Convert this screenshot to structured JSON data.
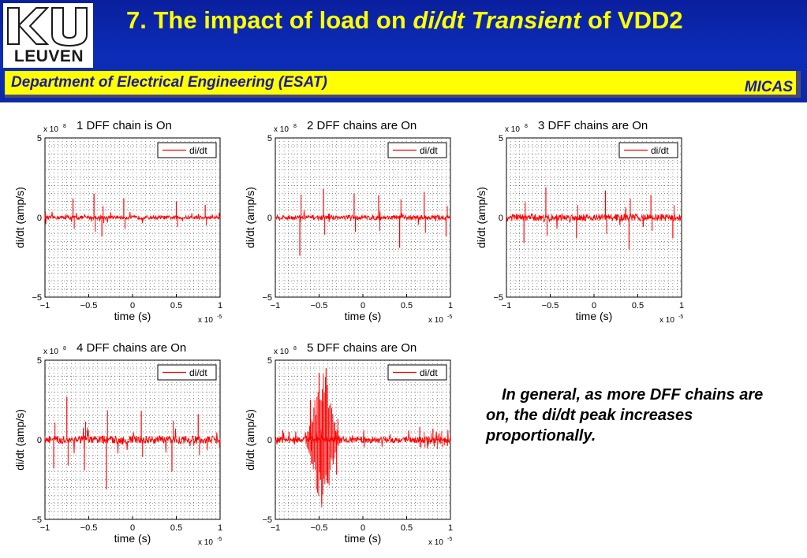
{
  "header": {
    "title_prefix": "7. The impact of load on ",
    "title_italic": "di/dt Transient",
    "title_suffix": " of VDD2",
    "logo_text": "LEUVEN",
    "department": "Department of Electrical Engineering (ESAT)",
    "group": "MICAS",
    "colors": {
      "background": "#0c2db8",
      "title": "#ffff00",
      "band": "#ffff00",
      "band_text": "#1a1aa0"
    }
  },
  "note": "In general, as more DFF chains are on, the di/dt peak increases proportionally.",
  "chart_data": [
    {
      "type": "line",
      "title": "1 DFF chain is On",
      "xlabel": "time (s)",
      "ylabel": "di/dt (amp/s)",
      "x_exponent": "x 10",
      "x_exp_power": "-5",
      "y_exponent": "x 10",
      "y_exp_power": "8",
      "xlim": [
        -1,
        1
      ],
      "ylim": [
        -5,
        5
      ],
      "xticks": [
        "-1",
        "-0.5",
        "0",
        "0.5",
        "1"
      ],
      "yticks": [
        "5",
        "0",
        "-5"
      ],
      "grid": true,
      "legend": "top-right",
      "series": [
        {
          "name": "di/dt",
          "color": "#ff0000",
          "x": [
            -0.68,
            -0.44,
            -0.35,
            -0.1,
            0.5,
            0.83
          ],
          "y": [
            1.2,
            1.5,
            -1.2,
            1.2,
            1.0,
            0.8
          ],
          "noise": 0.12
        }
      ]
    },
    {
      "type": "line",
      "title": "2 DFF chains are On",
      "xlabel": "time (s)",
      "ylabel": "di/dt (amp/s)",
      "x_exponent": "x 10",
      "x_exp_power": "-5",
      "y_exponent": "x 10",
      "y_exp_power": "8",
      "xlim": [
        -1,
        1
      ],
      "ylim": [
        -5,
        5
      ],
      "xticks": [
        "-1",
        "-0.5",
        "0",
        "0.5",
        "1"
      ],
      "yticks": [
        "5",
        "0",
        "-5"
      ],
      "grid": true,
      "legend": "top-right",
      "series": [
        {
          "name": "di/dt",
          "color": "#ff0000",
          "x": [
            -0.72,
            -0.45,
            -0.1,
            0.18,
            0.42,
            0.7,
            0.95
          ],
          "y": [
            -2.4,
            1.8,
            1.5,
            1.4,
            -1.9,
            1.6,
            -1.2
          ],
          "noise": 0.15
        }
      ]
    },
    {
      "type": "line",
      "title": "3 DFF chains are On",
      "xlabel": "time (s)",
      "ylabel": "di/dt (amp/s)",
      "x_exponent": "x 10",
      "x_exp_power": "-5",
      "y_exponent": "x 10",
      "y_exp_power": "8",
      "xlim": [
        -1,
        1
      ],
      "ylim": [
        -5,
        5
      ],
      "xticks": [
        "-1",
        "-0.5",
        "0",
        "0.5",
        "1"
      ],
      "yticks": [
        "5",
        "0",
        "-5"
      ],
      "grid": true,
      "legend": "top-right",
      "series": [
        {
          "name": "di/dt",
          "color": "#ff0000",
          "x": [
            -0.8,
            -0.55,
            -0.2,
            0.13,
            0.4,
            0.65,
            0.9
          ],
          "y": [
            -1.6,
            1.9,
            -1.3,
            1.7,
            -2.0,
            1.4,
            -1.3
          ],
          "noise": 0.22
        }
      ]
    },
    {
      "type": "line",
      "title": "4 DFF chains are On",
      "xlabel": "time (s)",
      "ylabel": "di/dt (amp/s)",
      "x_exponent": "x 10",
      "x_exp_power": "-5",
      "y_exponent": "x 10",
      "y_exp_power": "8",
      "xlim": [
        -1,
        1
      ],
      "ylim": [
        -5,
        5
      ],
      "xticks": [
        "-1",
        "-0.5",
        "0",
        "0.5",
        "1"
      ],
      "yticks": [
        "5",
        "0",
        "-5"
      ],
      "grid": true,
      "legend": "top-right",
      "series": [
        {
          "name": "di/dt",
          "color": "#ff0000",
          "x": [
            -0.9,
            -0.75,
            -0.55,
            -0.3,
            0.1,
            0.45,
            0.75
          ],
          "y": [
            -1.8,
            2.7,
            -1.9,
            -3.1,
            1.8,
            -2.0,
            1.6
          ],
          "noise": 0.25
        }
      ]
    },
    {
      "type": "line",
      "title": "5 DFF chains are On",
      "xlabel": "time (s)",
      "ylabel": "di/dt (amp/s)",
      "x_exponent": "x 10",
      "x_exp_power": "-5",
      "y_exponent": "x 10",
      "y_exp_power": "8",
      "xlim": [
        -1,
        1
      ],
      "ylim": [
        -5,
        5
      ],
      "xticks": [
        "-1",
        "-0.5",
        "0",
        "0.5",
        "1"
      ],
      "yticks": [
        "5",
        "0",
        "-5"
      ],
      "grid": true,
      "legend": "top-right",
      "series": [
        {
          "name": "di/dt",
          "color": "#ff0000",
          "x": [
            -0.6,
            -0.5,
            -0.47,
            -0.42,
            -0.3,
            0.65,
            0.8
          ],
          "y": [
            2.5,
            4.2,
            -4.0,
            4.5,
            -2.2,
            0.8,
            0.7
          ],
          "noise": 0.2
        }
      ]
    }
  ]
}
